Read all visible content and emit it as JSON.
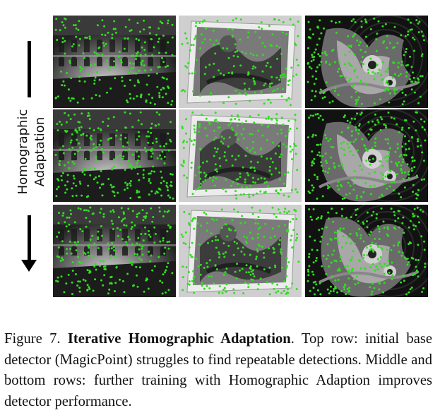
{
  "figure": {
    "side_label_line1": "Homographic",
    "side_label_line2": "Adaptation",
    "rows": [
      {
        "row": "top",
        "panels": [
          "building",
          "poster",
          "graffiti"
        ]
      },
      {
        "row": "middle",
        "panels": [
          "building",
          "poster",
          "graffiti"
        ]
      },
      {
        "row": "bottom",
        "panels": [
          "building",
          "poster",
          "graffiti"
        ]
      }
    ],
    "keypoint_color": "#33dd22",
    "keypoint_counts": {
      "top": [
        210,
        170,
        230
      ],
      "middle": [
        260,
        240,
        260
      ],
      "bottom": [
        250,
        240,
        270
      ]
    }
  },
  "caption": {
    "prefix": "Figure 7.",
    "bold_title": "Iterative Homographic Adaptation",
    "rest": ". Top row: initial base detector (MagicPoint) struggles to find repeatable detections. Middle and bottom rows: further training with Homographic Adaption improves detector performance."
  }
}
